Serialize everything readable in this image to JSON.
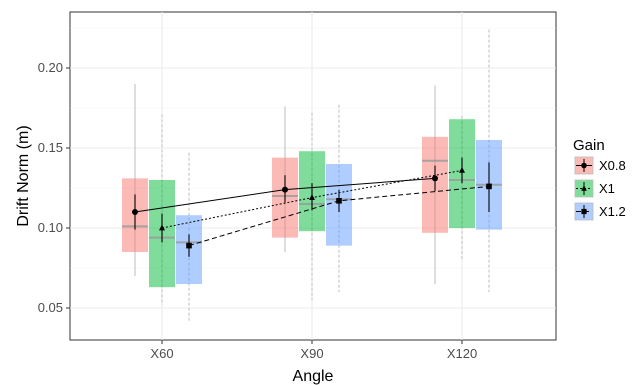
{
  "chart_data": {
    "type": "box",
    "xlabel": "Angle",
    "ylabel": "Drift Norm (m)",
    "categories": [
      "X60",
      "X90",
      "X120"
    ],
    "ylim": [
      0.03,
      0.235
    ],
    "yticks": [
      0.05,
      0.1,
      0.15,
      0.2
    ],
    "ytick_labels": [
      "0.05",
      "0.10",
      "0.15",
      "0.20"
    ],
    "grid": true,
    "legend": {
      "title": "Gain",
      "position": "right",
      "entries": [
        "X0.8",
        "X1",
        "X1.2"
      ]
    },
    "series": [
      {
        "name": "X0.8",
        "color": "#F8766D",
        "marker": "circle",
        "line_style": "solid",
        "boxes": [
          {
            "min": 0.07,
            "q1": 0.085,
            "median": 0.101,
            "q3": 0.131,
            "max": 0.19
          },
          {
            "min": 0.085,
            "q1": 0.094,
            "median": 0.12,
            "q3": 0.144,
            "max": 0.176
          },
          {
            "min": 0.065,
            "q1": 0.097,
            "median": 0.142,
            "q3": 0.157,
            "max": 0.189
          }
        ],
        "means": [
          0.11,
          0.124,
          0.131
        ],
        "error": [
          {
            "lo": 0.099,
            "hi": 0.121
          },
          {
            "lo": 0.116,
            "hi": 0.133
          },
          {
            "lo": 0.123,
            "hi": 0.139
          }
        ]
      },
      {
        "name": "X1",
        "color": "#00BA38",
        "marker": "triangle",
        "line_style": "dotted",
        "boxes": [
          {
            "min": 0.052,
            "q1": 0.063,
            "median": 0.094,
            "q3": 0.13,
            "max": 0.171
          },
          {
            "min": 0.055,
            "q1": 0.098,
            "median": 0.115,
            "q3": 0.148,
            "max": 0.172
          },
          {
            "min": 0.08,
            "q1": 0.1,
            "median": 0.13,
            "q3": 0.168,
            "max": 0.17
          }
        ],
        "means": [
          0.1,
          0.119,
          0.136
        ],
        "error": [
          {
            "lo": 0.091,
            "hi": 0.109
          },
          {
            "lo": 0.111,
            "hi": 0.128
          },
          {
            "lo": 0.128,
            "hi": 0.144
          }
        ]
      },
      {
        "name": "X1.2",
        "color": "#619CFF",
        "marker": "square",
        "line_style": "dashed",
        "boxes": [
          {
            "min": 0.042,
            "q1": 0.065,
            "median": 0.091,
            "q3": 0.108,
            "max": 0.147
          },
          {
            "min": 0.06,
            "q1": 0.089,
            "median": 0.118,
            "q3": 0.14,
            "max": 0.177
          },
          {
            "min": 0.06,
            "q1": 0.099,
            "median": 0.127,
            "q3": 0.155,
            "max": 0.224
          }
        ],
        "means": [
          0.089,
          0.117,
          0.126
        ],
        "error": [
          {
            "lo": 0.082,
            "hi": 0.096
          },
          {
            "lo": 0.11,
            "hi": 0.124
          },
          {
            "lo": 0.11,
            "hi": 0.141
          }
        ]
      }
    ]
  }
}
